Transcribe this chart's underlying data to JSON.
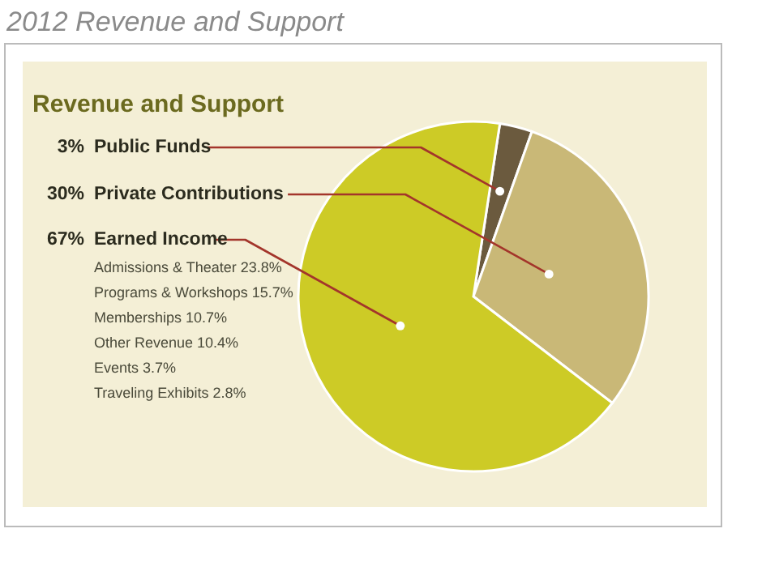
{
  "chart_data": {
    "type": "pie",
    "title": "2012 Revenue and Support",
    "subtitle": "Revenue and Support",
    "categories": [
      "Public Funds",
      "Private Contributions",
      "Earned Income"
    ],
    "values": [
      3,
      30,
      67
    ],
    "colors": [
      "#6b5a3e",
      "#c9b877",
      "#cdcb26"
    ],
    "value_labels": [
      "3%",
      "30%",
      "67%"
    ],
    "annotations": [
      "Admissions & Theater 23.8%",
      "Programs & Workshops 15.7%",
      "Memberships 10.7%",
      "Other Revenue 10.4%",
      "Events 3.7%",
      "Traveling Exhibits 2.8%"
    ]
  }
}
